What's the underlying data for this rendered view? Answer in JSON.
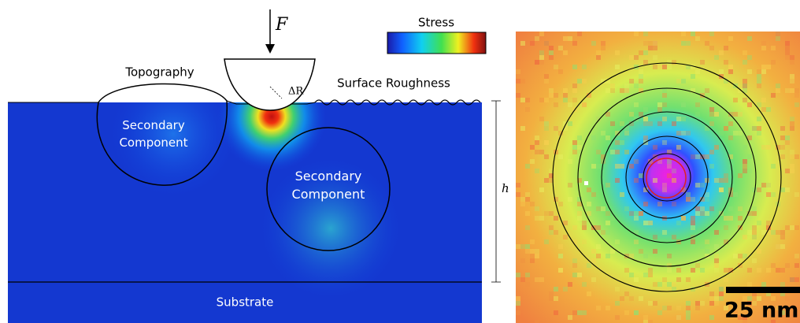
{
  "force_label": "F",
  "colorbar": {
    "title": "Stress"
  },
  "labels": {
    "topography": "Topography",
    "surface_roughness": "Surface Roughness",
    "delta_r": "ΔR",
    "secondary_left": "Secondary Component",
    "secondary_right": "Secondary Component",
    "height": "h",
    "substrate": "Substrate"
  },
  "scale_bar": {
    "label": "25 nm"
  }
}
